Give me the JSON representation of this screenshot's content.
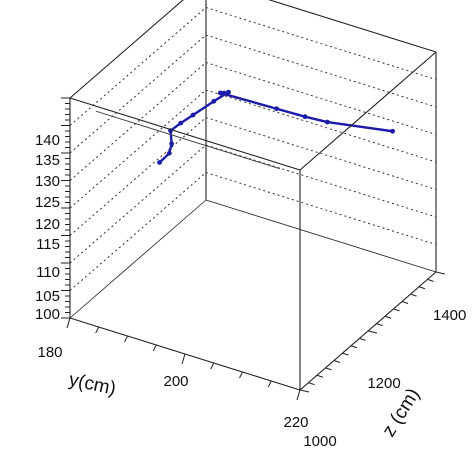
{
  "chart_data": {
    "type": "line3d",
    "title": "",
    "axes": {
      "y": {
        "label": "y(cm)",
        "range": [
          180,
          220
        ],
        "ticks": [
          180,
          200,
          220
        ],
        "tick_labels": [
          "180",
          "200",
          "220"
        ]
      },
      "z": {
        "label": "z (cm)",
        "range": [
          1000,
          1400
        ],
        "ticks": [
          1000,
          1200,
          1400
        ],
        "tick_labels": [
          "1000",
          "1200",
          "1400"
        ]
      },
      "vertical": {
        "label": "",
        "range": [
          100,
          140
        ],
        "ticks": [
          100,
          105,
          110,
          115,
          120,
          125,
          130,
          135,
          140
        ],
        "tick_labels": [
          "100",
          "105",
          "110",
          "115",
          "120",
          "125",
          "130",
          "135",
          "140"
        ]
      }
    },
    "grid": true,
    "series": [
      {
        "color": "#1c1ca8",
        "points": [
          {
            "y": 216.0,
            "z": 1340,
            "v": 127.5
          },
          {
            "y": 208.5,
            "z": 1275,
            "v": 130.2
          },
          {
            "y": 205.5,
            "z": 1260,
            "v": 131.0
          },
          {
            "y": 201.5,
            "z": 1244,
            "v": 132.0
          },
          {
            "y": 193.6,
            "z": 1212,
            "v": 134.0
          },
          {
            "y": 194.5,
            "z": 1208,
            "v": 134.5
          },
          {
            "y": 195.5,
            "z": 1204,
            "v": 135.2
          },
          {
            "y": 194.0,
            "z": 1186,
            "v": 134.0
          },
          {
            "y": 192.0,
            "z": 1159,
            "v": 132.3
          },
          {
            "y": 190.8,
            "z": 1143,
            "v": 131.3
          },
          {
            "y": 189.8,
            "z": 1130,
            "v": 130.3
          },
          {
            "y": 190.4,
            "z": 1123,
            "v": 128.5
          },
          {
            "y": 190.3,
            "z": 1118,
            "v": 127.0
          },
          {
            "y": 189.6,
            "z": 1101,
            "v": 126.0
          }
        ]
      }
    ]
  }
}
